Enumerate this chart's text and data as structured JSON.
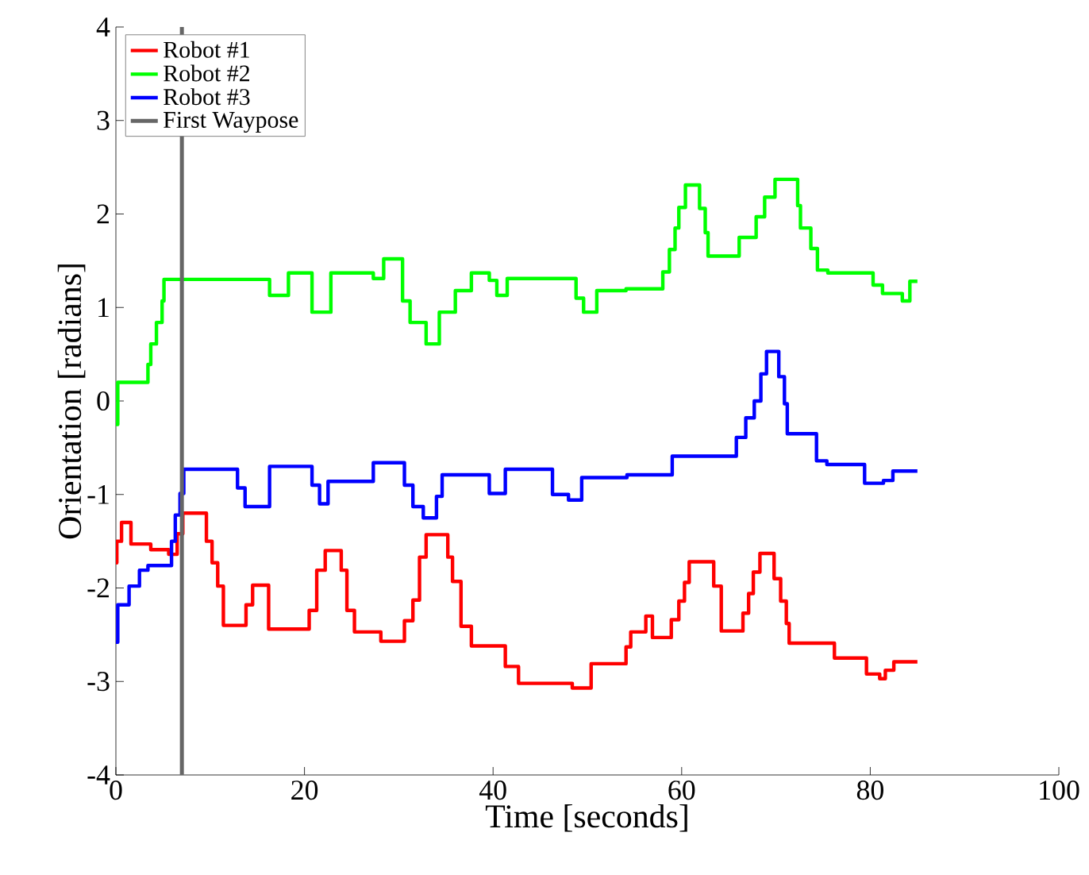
{
  "chart_data": {
    "type": "step",
    "xlabel": "Time [seconds]",
    "ylabel": "Orientation [radians]",
    "xlim": [
      0,
      100
    ],
    "ylim": [
      -4,
      4
    ],
    "xticks": [
      0,
      20,
      40,
      60,
      80,
      100
    ],
    "yticks": [
      -4,
      -3,
      -2,
      -1,
      0,
      1,
      2,
      3,
      4
    ],
    "legend": "top left",
    "grid": false,
    "line_style": "solid",
    "marker": "none",
    "series": [
      {
        "name": "Robot #1",
        "color": "#ff0000",
        "x": [
          0,
          0.1,
          0.6,
          1.6,
          3.7,
          5.6,
          6.5,
          7.1,
          9.6,
          10.2,
          10.8,
          11.4,
          13.8,
          14.5,
          16.2,
          20.5,
          21.3,
          22.2,
          23.9,
          24.5,
          25.3,
          28.1,
          30.6,
          31.5,
          32.2,
          32.9,
          35.2,
          35.7,
          36.6,
          37.7,
          41.3,
          42.7,
          48.4,
          50.4,
          54.1,
          54.6,
          56.2,
          56.9,
          58.9,
          59.7,
          60.3,
          60.8,
          63.4,
          64.2,
          66.5,
          67.1,
          67.6,
          68.3,
          69.8,
          70.5,
          71.1,
          71.4,
          76.2,
          79.6,
          81,
          81.6,
          82.5,
          85
        ],
        "values": [
          -1.73,
          -1.5,
          -1.3,
          -1.53,
          -1.59,
          -1.64,
          -1.42,
          -1.2,
          -1.5,
          -1.73,
          -1.98,
          -2.4,
          -2.18,
          -1.97,
          -2.44,
          -2.24,
          -1.81,
          -1.6,
          -1.81,
          -2.24,
          -2.47,
          -2.57,
          -2.35,
          -2.13,
          -1.67,
          -1.43,
          -1.67,
          -1.93,
          -2.41,
          -2.62,
          -2.84,
          -3.02,
          -3.07,
          -2.81,
          -2.63,
          -2.47,
          -2.3,
          -2.53,
          -2.34,
          -2.14,
          -1.94,
          -1.72,
          -1.98,
          -2.46,
          -2.27,
          -2.06,
          -1.83,
          -1.63,
          -1.9,
          -2.14,
          -2.38,
          -2.59,
          -2.75,
          -2.92,
          -2.97,
          -2.88,
          -2.79,
          -2.79
        ]
      },
      {
        "name": "Robot #2",
        "color": "#00ff00",
        "x": [
          0,
          0.2,
          3.4,
          3.7,
          4.3,
          4.9,
          5.1,
          16.3,
          18.3,
          20.8,
          22.8,
          27.3,
          28.4,
          30.4,
          31.2,
          32.9,
          34.3,
          36,
          37.7,
          39.6,
          40.4,
          41.5,
          48.8,
          49.6,
          51,
          54.1,
          58,
          58.7,
          59.3,
          59.7,
          60.4,
          61.9,
          62.5,
          62.8,
          66.1,
          67.9,
          68.8,
          69.9,
          72.3,
          72.6,
          73.7,
          74.4,
          75.5,
          80.3,
          81.3,
          83.4,
          84.2,
          85
        ],
        "values": [
          -0.25,
          0.2,
          0.39,
          0.61,
          0.84,
          1.07,
          1.3,
          1.13,
          1.37,
          0.95,
          1.37,
          1.31,
          1.52,
          1.07,
          0.84,
          0.61,
          0.95,
          1.18,
          1.37,
          1.29,
          1.13,
          1.31,
          1.1,
          0.95,
          1.18,
          1.2,
          1.38,
          1.62,
          1.85,
          2.07,
          2.31,
          2.06,
          1.8,
          1.55,
          1.75,
          1.97,
          2.18,
          2.37,
          2.09,
          1.85,
          1.63,
          1.4,
          1.37,
          1.24,
          1.15,
          1.07,
          1.28,
          1.28
        ]
      },
      {
        "name": "Robot #3",
        "color": "#0000ff",
        "x": [
          0,
          0.2,
          1.4,
          2.5,
          3.4,
          5.9,
          6.3,
          6.8,
          7.2,
          12.9,
          13.7,
          16.3,
          20.8,
          21.6,
          22.5,
          27.3,
          30.6,
          31.5,
          32.6,
          34,
          34.6,
          39.6,
          41.3,
          46.3,
          48,
          49.4,
          54.2,
          59,
          65.8,
          66.8,
          67.7,
          68.4,
          69,
          70.3,
          70.9,
          71.2,
          74.3,
          75.4,
          79.4,
          81.4,
          82.4,
          85
        ],
        "values": [
          -2.58,
          -2.18,
          -1.98,
          -1.81,
          -1.76,
          -1.5,
          -1.22,
          -0.99,
          -0.73,
          -0.93,
          -1.13,
          -0.7,
          -0.9,
          -1.1,
          -0.86,
          -0.66,
          -0.9,
          -1.13,
          -1.25,
          -1.02,
          -0.79,
          -0.99,
          -0.73,
          -1.0,
          -1.06,
          -0.82,
          -0.79,
          -0.59,
          -0.39,
          -0.18,
          0.0,
          0.29,
          0.53,
          0.26,
          -0.03,
          -0.35,
          -0.64,
          -0.68,
          -0.88,
          -0.85,
          -0.75,
          -0.75
        ]
      }
    ],
    "ref_lines": [
      {
        "axis": "x",
        "value": 7,
        "label": "First Waypose",
        "color": "#666666"
      }
    ]
  }
}
